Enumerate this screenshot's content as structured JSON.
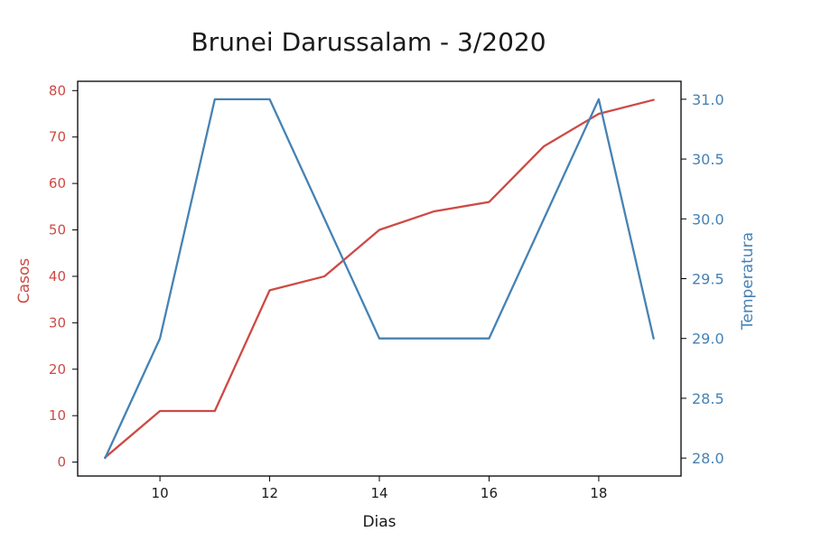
{
  "chart_data": {
    "type": "line",
    "title": "Brunei Darussalam - 3/2020",
    "xlabel": "Dias",
    "ylabel_left": "Casos",
    "ylabel_right": "Temperatura",
    "x": [
      9,
      10,
      11,
      12,
      13,
      14,
      15,
      16,
      17,
      18,
      19
    ],
    "x_ticks": [
      10,
      12,
      14,
      16,
      18
    ],
    "xlim": [
      8.5,
      19.5
    ],
    "left_axis": {
      "ylim": [
        -3,
        82
      ],
      "ticks": [
        0,
        10,
        20,
        30,
        40,
        50,
        60,
        70,
        80
      ],
      "tick_labels": [
        "0",
        "10",
        "20",
        "30",
        "40",
        "50",
        "60",
        "70",
        "80"
      ]
    },
    "right_axis": {
      "ylim": [
        27.85,
        31.15
      ],
      "ticks": [
        28.0,
        28.5,
        29.0,
        29.5,
        30.0,
        30.5,
        31.0
      ],
      "tick_labels": [
        "28.0",
        "28.5",
        "29.0",
        "29.5",
        "30.0",
        "30.5",
        "31.0"
      ]
    },
    "series": [
      {
        "axis": "left",
        "color": "#cd4a45",
        "values": [
          1,
          11,
          11,
          37,
          40,
          50,
          54,
          56,
          68,
          75,
          78
        ]
      },
      {
        "axis": "right",
        "color": "#4682b4",
        "values": [
          28.0,
          29.0,
          31.0,
          31.0,
          30.0,
          29.0,
          29.0,
          29.0,
          30.0,
          31.0,
          29.0
        ]
      }
    ],
    "grid": false,
    "legend": "none"
  }
}
